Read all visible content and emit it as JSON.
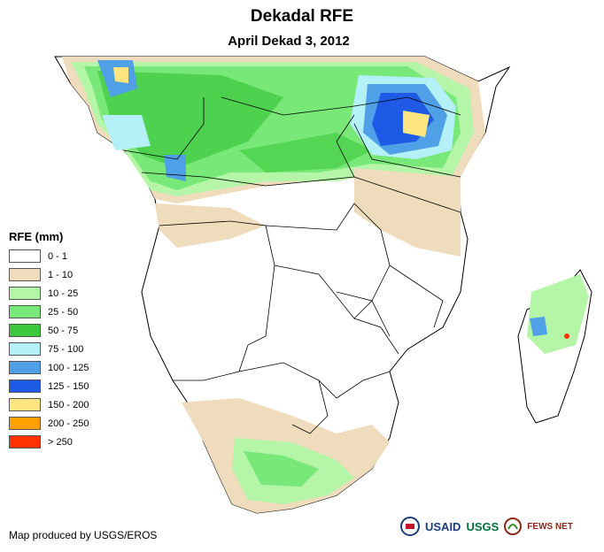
{
  "title": "Dekadal RFE",
  "subtitle": "April Dekad 3, 2012",
  "legend": {
    "title": "RFE (mm)",
    "items": [
      {
        "label": "0 - 1",
        "color": "#ffffff"
      },
      {
        "label": "1 - 10",
        "color": "#efdcbc"
      },
      {
        "label": "10 - 25",
        "color": "#b4f5a8"
      },
      {
        "label": "25 - 50",
        "color": "#78e878"
      },
      {
        "label": "50 - 75",
        "color": "#3cc83c"
      },
      {
        "label": "75 - 100",
        "color": "#b4f0f8"
      },
      {
        "label": "100 - 125",
        "color": "#50a0e8"
      },
      {
        "label": "125 - 150",
        "color": "#1e5ae6"
      },
      {
        "label": "150 - 200",
        "color": "#ffe680"
      },
      {
        "label": "200 - 250",
        "color": "#ffa000"
      },
      {
        "label": "> 250",
        "color": "#ff3200"
      }
    ]
  },
  "credit": "Map produced by USGS/EROS",
  "logos": {
    "usaid": "USAID",
    "usgs": "USGS",
    "fewsnet": "FEWS NET"
  }
}
